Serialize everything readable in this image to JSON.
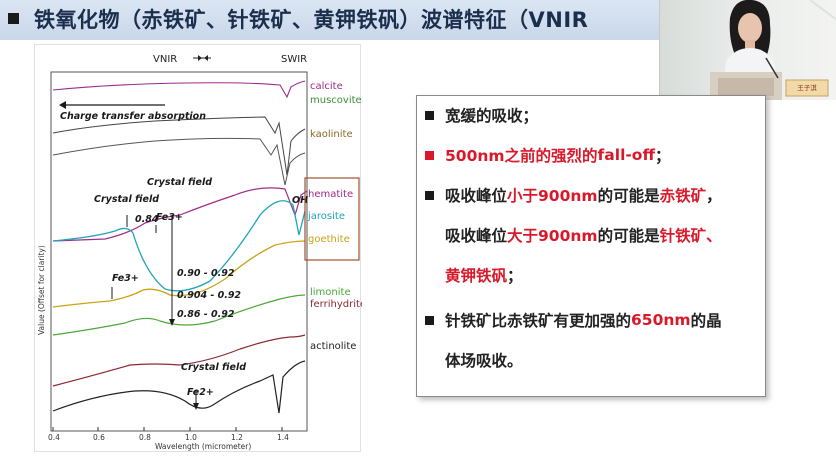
{
  "slide": {
    "title": "铁氧化物（赤铁矿、针铁矿、黄钾铁矾）波谱特征（VNIR"
  },
  "video": {
    "nameplate": "王子淇"
  },
  "figure": {
    "region_vnir": "VNIR",
    "region_swir": "SWIR",
    "charge_transfer": "Charge transfer absorption",
    "crystal_field_left": "Crystal field",
    "crystal_field_mid": "Crystal field",
    "crystal_field_bottom": "Crystal field",
    "fe3_mid": "Fe3+",
    "fe3_left": "Fe3+",
    "fe2_bottom": "Fe2+",
    "oh_label": "OH",
    "val_084": "0.84",
    "range_1": "0.90 - 0.92",
    "range_2": "0.904 - 0.92",
    "range_3": "0.86 - 0.92",
    "ylabel": "Value (Offset for clarity)",
    "xlabel": "Wavelength (micrometer)",
    "x_ticks": [
      "0.4",
      "0.6",
      "0.8",
      "1.0",
      "1.2",
      "1.4"
    ],
    "minerals": [
      {
        "name": "calcite",
        "color": "#9c2c8c"
      },
      {
        "name": "muscovite",
        "color": "#3c8c3c"
      },
      {
        "name": "kaolinite",
        "color": "#8a6a28"
      },
      {
        "name": "hematite",
        "color": "#a02c8a"
      },
      {
        "name": "jarosite",
        "color": "#1fa5b8"
      },
      {
        "name": "goethite",
        "color": "#c9a416"
      },
      {
        "name": "limonite",
        "color": "#4aa83a"
      },
      {
        "name": "ferrihydrite",
        "color": "#8c2a34"
      },
      {
        "name": "actinolite",
        "color": "#222222"
      }
    ]
  },
  "bullets": {
    "b1": "宽缓的吸收；",
    "b2_a": "500nm之前的强烈的",
    "b2_b": "fall-off",
    "b2_c": "；",
    "b3_a": "吸收峰位",
    "b3_b": "小于900nm",
    "b3_c": "的可能是",
    "b3_d": "赤铁矿",
    "b3_e": "，",
    "b4_a": "吸收峰位",
    "b4_b": "大于900nm",
    "b4_c": "的可能是",
    "b4_d": "针铁矿、",
    "b5_a": "黄钾铁矾",
    "b5_b": "；",
    "b6_a": "针铁矿比赤铁矿有更加强的",
    "b6_b": "650nm",
    "b6_c": "的晶",
    "b7": "体场吸收。"
  }
}
